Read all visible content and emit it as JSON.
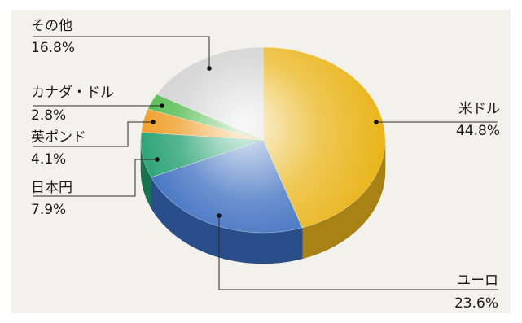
{
  "chart_data": {
    "type": "pie",
    "title": "",
    "slices": [
      {
        "label": "米ドル",
        "value": 44.8,
        "display": "44.8%",
        "color": "#e9b51c"
      },
      {
        "label": "ユーロ",
        "value": 23.6,
        "display": "23.6%",
        "color": "#3a6cbf"
      },
      {
        "label": "日本円",
        "value": 7.9,
        "display": "7.9%",
        "color": "#1f9e6e"
      },
      {
        "label": "英ポンド",
        "value": 4.1,
        "display": "4.1%",
        "color": "#ee9a20"
      },
      {
        "label": "カナダ・ドル",
        "value": 2.8,
        "display": "2.8%",
        "color": "#4cb848"
      },
      {
        "label": "その他",
        "value": 16.8,
        "display": "16.8%",
        "color": "#cfcfcf"
      }
    ]
  }
}
